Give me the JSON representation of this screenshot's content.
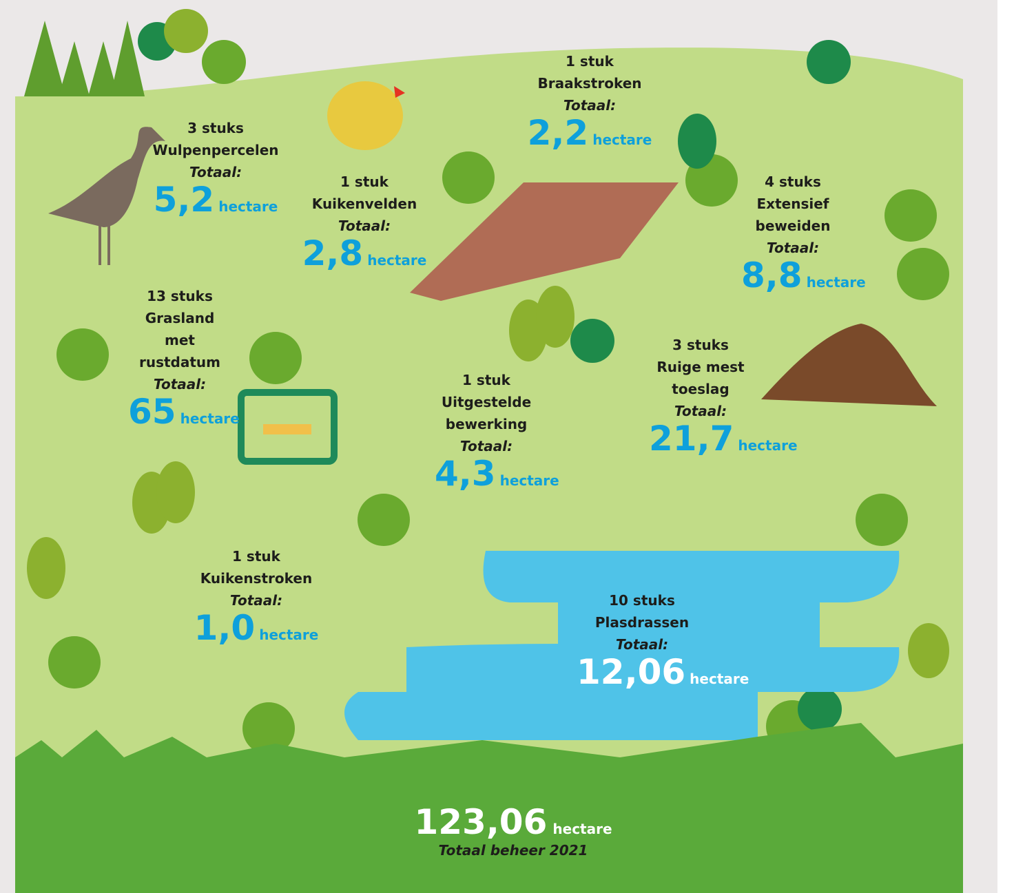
{
  "items": [
    {
      "count": "3 stuks",
      "name": "Wulpenpercelen",
      "total_label": "Totaal:",
      "value": "5,2",
      "unit": "hectare"
    },
    {
      "count": "1 stuk",
      "name": "Kuikenvelden",
      "total_label": "Totaal:",
      "value": "2,8",
      "unit": "hectare"
    },
    {
      "count": "1 stuk",
      "name": "Braakstroken",
      "total_label": "Totaal:",
      "value": "2,2",
      "unit": "hectare"
    },
    {
      "count": "4 stuks",
      "name": "Extensief beweiden",
      "total_label": "Totaal:",
      "value": "8,8",
      "unit": "hectare"
    },
    {
      "count": "13 stuks",
      "name": "Grasland met rustdatum",
      "total_label": "Totaal:",
      "value": "65",
      "unit": "hectare"
    },
    {
      "count": "3 stuks",
      "name": "Ruige mest toeslag",
      "total_label": "Totaal:",
      "value": "21,7",
      "unit": "hectare"
    },
    {
      "count": "1 stuk",
      "name": "Uitgestelde bewerking",
      "total_label": "Totaal:",
      "value": "4,3",
      "unit": "hectare"
    },
    {
      "count": "1 stuk",
      "name": "Kuikenstroken",
      "total_label": "Totaal:",
      "value": "1,0",
      "unit": "hectare"
    },
    {
      "count": "10 stuks",
      "name": "Plasdrassen",
      "total_label": "Totaal:",
      "value": "12,06",
      "unit": "hectare"
    }
  ],
  "total": {
    "value": "123,06",
    "unit": "hectare",
    "label": "Totaal beheer 2021"
  }
}
